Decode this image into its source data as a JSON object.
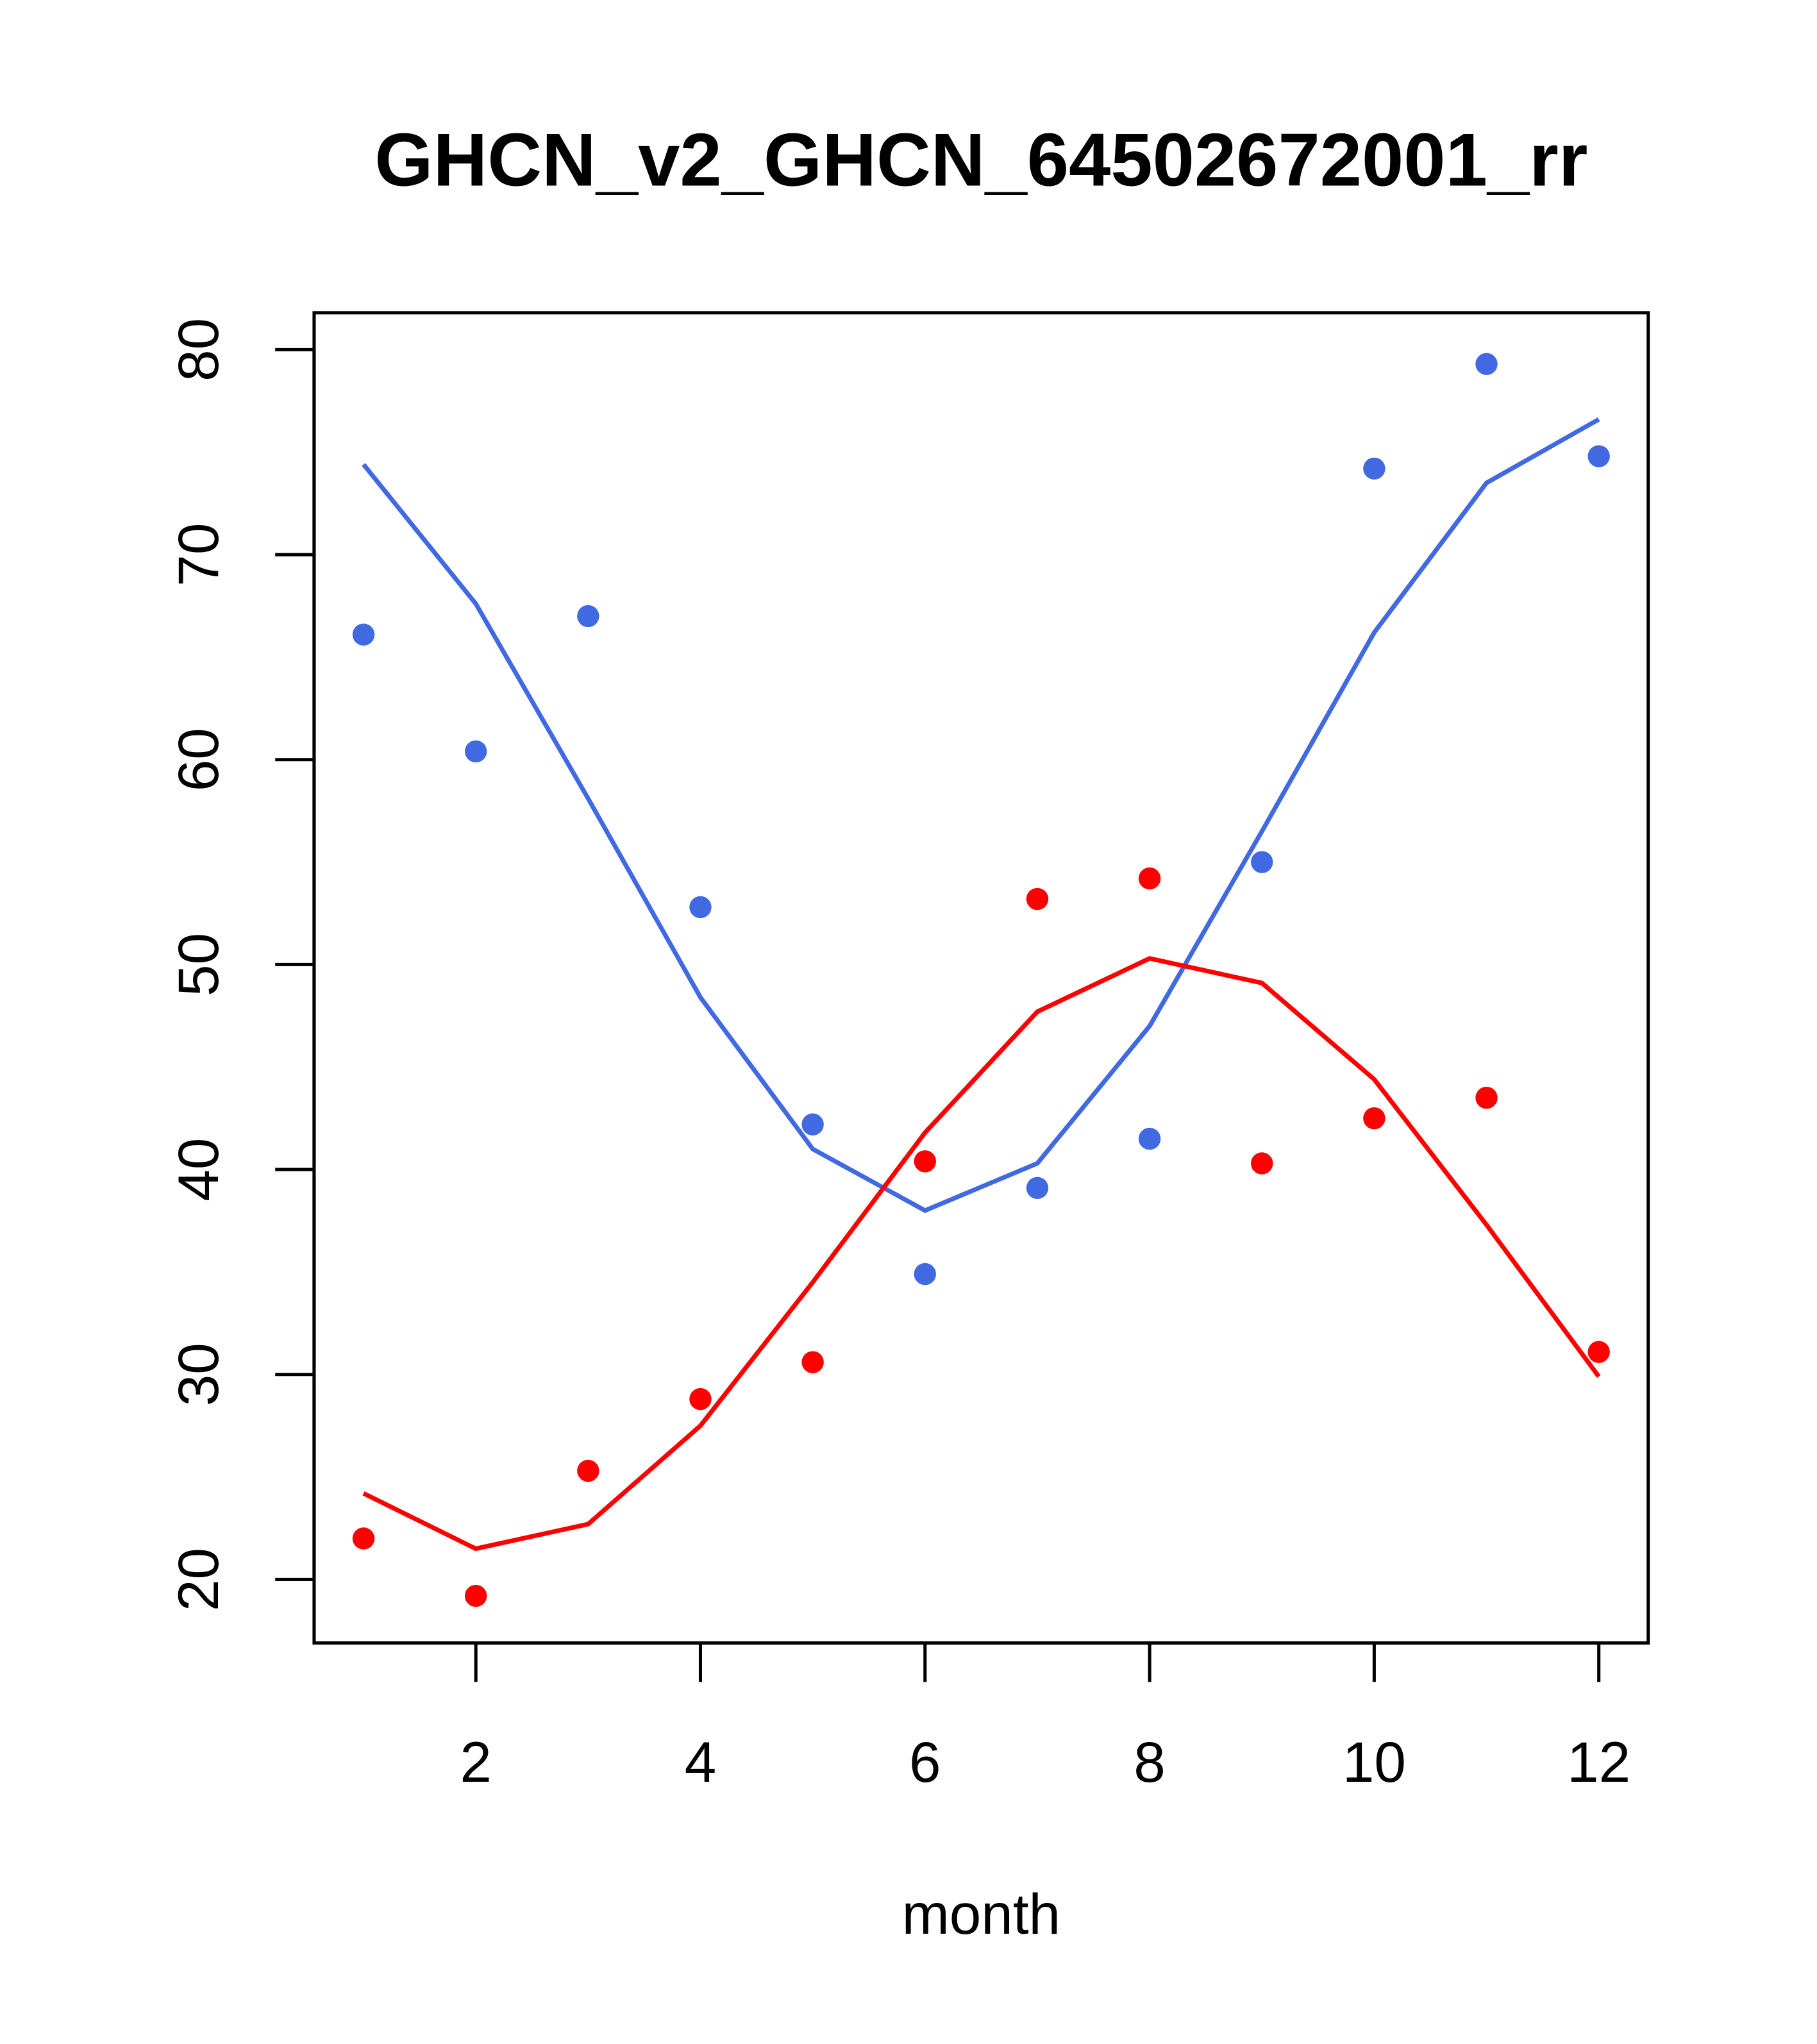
{
  "chart_data": {
    "type": "scatter",
    "title": "GHCN_v2_GHCN_64502672001_rr",
    "xlabel": "month",
    "ylabel": "",
    "xlim": [
      0.56,
      12.44
    ],
    "ylim": [
      16.9,
      81.8
    ],
    "xticks": [
      2,
      4,
      6,
      8,
      10,
      12
    ],
    "yticks": [
      20,
      30,
      40,
      50,
      60,
      70,
      80
    ],
    "grid": false,
    "colors": {
      "blue": "#4169E1",
      "red": "#FF0000"
    },
    "x": [
      1,
      2,
      3,
      4,
      5,
      6,
      7,
      8,
      9,
      10,
      11,
      12
    ],
    "series": [
      {
        "name": "blue-points",
        "kind": "points",
        "color": "#4169E1",
        "values": [
          66.1,
          60.4,
          67.0,
          52.8,
          42.2,
          34.9,
          39.1,
          41.5,
          55.0,
          74.2,
          79.3,
          74.8
        ]
      },
      {
        "name": "blue-line",
        "kind": "line",
        "color": "#4169E1",
        "values": [
          74.4,
          67.6,
          58.1,
          48.4,
          41.0,
          38.0,
          40.3,
          47.0,
          56.5,
          66.2,
          73.5,
          76.6
        ]
      },
      {
        "name": "red-points",
        "kind": "points",
        "color": "#FF0000",
        "values": [
          22.0,
          19.2,
          25.3,
          28.8,
          30.6,
          40.4,
          53.2,
          54.2,
          40.3,
          42.5,
          43.5,
          31.1
        ]
      },
      {
        "name": "red-line",
        "kind": "line",
        "color": "#FF0000",
        "values": [
          24.2,
          21.5,
          22.7,
          27.5,
          34.5,
          41.8,
          47.7,
          50.3,
          49.1,
          44.4,
          37.3,
          29.9
        ]
      }
    ]
  }
}
